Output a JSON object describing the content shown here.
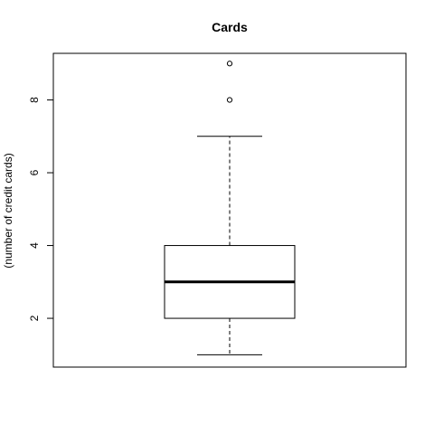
{
  "chart_data": {
    "type": "box",
    "title": "Cards",
    "xlabel": "",
    "ylabel": "(number of credit cards)",
    "yticks": [
      2,
      4,
      6,
      8
    ],
    "ylim": [
      0.66,
      9.28
    ],
    "box": {
      "whisker_low": 1,
      "q1": 2,
      "median": 3,
      "q3": 4,
      "whisker_high": 7,
      "outliers": [
        8,
        9
      ]
    },
    "grid": false,
    "legend": "none"
  }
}
